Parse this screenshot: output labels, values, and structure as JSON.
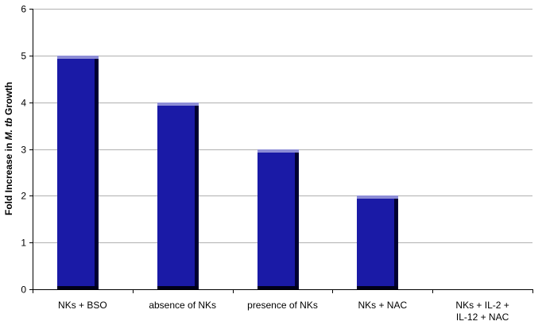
{
  "chart_data": {
    "type": "bar",
    "categories": [
      [
        "NKs + BSO"
      ],
      [
        "absence of NKs"
      ],
      [
        "presence of NKs"
      ],
      [
        "NKs + NAC"
      ],
      [
        "NKs + IL-2 +",
        "IL-12 + NAC"
      ]
    ],
    "values": [
      5,
      4,
      3,
      2,
      0
    ],
    "ylabel": {
      "prefix": "Fold Increase in ",
      "italic": "M. tb",
      "suffix": " Growth"
    },
    "ylim": [
      0,
      6
    ],
    "yticks": [
      0,
      1,
      2,
      3,
      4,
      5,
      6
    ],
    "grid": true,
    "legend": "none",
    "colors": {
      "bar_face": "#1a1aa6",
      "bar_side": "#000033",
      "bar_top": "#8d8dd6",
      "bar_base": "#00001a",
      "grid": "#b0b0b0",
      "axis": "#000000"
    }
  }
}
